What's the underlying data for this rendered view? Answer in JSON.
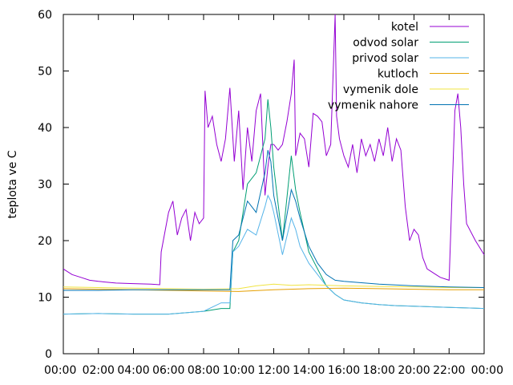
{
  "chart_data": {
    "type": "line",
    "title": "",
    "xlabel": "",
    "ylabel": "teplota ve C",
    "xlim": [
      "00:00",
      "24:00"
    ],
    "ylim": [
      0,
      60
    ],
    "x_ticks": [
      "00:00",
      "02:00",
      "04:00",
      "06:00",
      "08:00",
      "10:00",
      "12:00",
      "14:00",
      "16:00",
      "18:00",
      "20:00",
      "22:00",
      "00:00"
    ],
    "y_ticks": [
      0,
      10,
      20,
      30,
      40,
      50,
      60
    ],
    "grid": false,
    "legend_position": "top-right",
    "series": [
      {
        "name": "kotel",
        "color": "#9400d3",
        "x": [
          "00:00",
          "00:30",
          "01:00",
          "01:30",
          "02:00",
          "03:00",
          "04:00",
          "05:00",
          "05:30",
          "05:35",
          "06:00",
          "06:15",
          "06:30",
          "06:45",
          "07:00",
          "07:15",
          "07:30",
          "07:45",
          "08:00",
          "08:05",
          "08:15",
          "08:30",
          "08:45",
          "09:00",
          "09:15",
          "09:30",
          "09:45",
          "10:00",
          "10:15",
          "10:30",
          "10:45",
          "11:00",
          "11:15",
          "11:30",
          "11:40",
          "11:50",
          "12:00",
          "12:15",
          "12:30",
          "12:45",
          "13:00",
          "13:10",
          "13:15",
          "13:30",
          "13:45",
          "14:00",
          "14:15",
          "14:30",
          "14:45",
          "15:00",
          "15:15",
          "15:30",
          "15:35",
          "15:45",
          "16:00",
          "16:15",
          "16:30",
          "16:45",
          "17:00",
          "17:15",
          "17:30",
          "17:45",
          "18:00",
          "18:15",
          "18:30",
          "18:45",
          "19:00",
          "19:15",
          "19:30",
          "19:45",
          "20:00",
          "20:15",
          "20:30",
          "20:45",
          "21:00",
          "21:15",
          "21:30",
          "22:00",
          "22:20",
          "22:30",
          "22:40",
          "22:50",
          "23:00",
          "23:30",
          "24:00"
        ],
        "y": [
          15,
          14,
          13.5,
          13,
          12.8,
          12.5,
          12.4,
          12.3,
          12.2,
          18,
          25,
          27,
          21,
          24,
          25.5,
          20,
          25,
          23,
          24,
          46.5,
          40,
          42,
          37,
          34,
          38,
          47,
          34,
          43,
          29,
          40,
          34,
          43,
          46,
          28,
          33,
          37,
          37,
          36,
          37,
          41,
          46,
          52,
          35,
          39,
          38,
          33,
          42.5,
          42,
          41,
          35,
          37,
          60,
          42,
          38,
          35,
          33,
          37,
          32,
          38,
          35,
          37,
          34,
          38,
          35,
          40,
          34,
          38,
          36,
          26,
          20,
          22,
          21,
          17,
          15,
          14.5,
          14,
          13.5,
          13,
          43,
          46,
          40,
          30,
          23,
          20,
          17.5
        ]
      },
      {
        "name": "odvod solar",
        "color": "#009e73",
        "x": [
          "00:00",
          "02:00",
          "04:00",
          "06:00",
          "08:00",
          "09:00",
          "09:30",
          "09:40",
          "10:00",
          "10:30",
          "11:00",
          "11:30",
          "11:40",
          "11:50",
          "12:00",
          "12:30",
          "13:00",
          "13:15",
          "13:30",
          "14:00",
          "14:30",
          "15:00",
          "15:30",
          "16:00",
          "17:00",
          "18:00",
          "19:00",
          "20:00",
          "21:00",
          "22:00",
          "23:00",
          "24:00"
        ],
        "y": [
          7,
          7.1,
          7,
          7,
          7.5,
          8,
          8,
          18,
          20,
          30,
          32,
          38,
          45,
          40,
          33,
          20,
          35,
          29,
          25,
          18,
          15,
          12,
          10.5,
          9.5,
          9,
          8.7,
          8.5,
          8.4,
          8.3,
          8.2,
          8.1,
          8
        ]
      },
      {
        "name": "privod solar",
        "color": "#56b4e9",
        "x": [
          "00:00",
          "02:00",
          "04:00",
          "06:00",
          "08:00",
          "09:00",
          "09:30",
          "09:40",
          "10:00",
          "10:30",
          "11:00",
          "11:30",
          "11:40",
          "11:50",
          "12:00",
          "12:30",
          "13:00",
          "13:15",
          "13:30",
          "14:00",
          "14:30",
          "15:00",
          "15:30",
          "16:00",
          "17:00",
          "18:00",
          "19:00",
          "20:00",
          "21:00",
          "22:00",
          "23:00",
          "24:00"
        ],
        "y": [
          7,
          7.1,
          7,
          7,
          7.5,
          9,
          9,
          18,
          19,
          22,
          21,
          26,
          28,
          27,
          25,
          17.5,
          24,
          22,
          19,
          16,
          14,
          12,
          10.5,
          9.5,
          9,
          8.7,
          8.5,
          8.4,
          8.3,
          8.2,
          8.1,
          8
        ]
      },
      {
        "name": "kutloch",
        "color": "#e69f00",
        "x": [
          "00:00",
          "02:00",
          "04:00",
          "06:00",
          "08:00",
          "10:00",
          "12:00",
          "14:00",
          "16:00",
          "18:00",
          "20:00",
          "22:00",
          "24:00"
        ],
        "y": [
          11.5,
          11.4,
          11.3,
          11.2,
          11.1,
          11,
          11.3,
          11.5,
          11.6,
          11.5,
          11.4,
          11.3,
          11.3
        ]
      },
      {
        "name": "vymenik dole",
        "color": "#f0e442",
        "x": [
          "00:00",
          "02:00",
          "04:00",
          "06:00",
          "08:00",
          "10:00",
          "11:00",
          "12:00",
          "13:00",
          "14:00",
          "16:00",
          "18:00",
          "20:00",
          "22:00",
          "24:00"
        ],
        "y": [
          11.8,
          11.7,
          11.6,
          11.5,
          11.4,
          11.5,
          12,
          12.3,
          12.1,
          12.2,
          12,
          11.9,
          11.8,
          11.7,
          11.7
        ]
      },
      {
        "name": "vymenik nahore",
        "color": "#0072b2",
        "x": [
          "00:00",
          "02:00",
          "04:00",
          "06:00",
          "08:00",
          "09:30",
          "09:40",
          "10:00",
          "10:30",
          "11:00",
          "11:30",
          "11:40",
          "11:50",
          "12:00",
          "12:30",
          "13:00",
          "13:15",
          "13:30",
          "14:00",
          "14:30",
          "15:00",
          "15:30",
          "16:00",
          "18:00",
          "20:00",
          "22:00",
          "24:00"
        ],
        "y": [
          11.2,
          11.2,
          11.3,
          11.3,
          11.3,
          11.3,
          20,
          21,
          27,
          25,
          32,
          36,
          34,
          28,
          20,
          29,
          27,
          24,
          19,
          16,
          14,
          13,
          12.8,
          12.3,
          12,
          11.8,
          11.7
        ]
      }
    ]
  }
}
